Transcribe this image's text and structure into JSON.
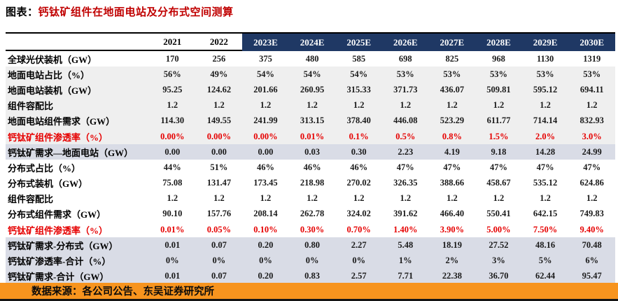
{
  "title": {
    "prefix": "图表：",
    "text": "钙钛矿组件在地面电站及分布式空间测算"
  },
  "colors": {
    "navy": "#1f3864",
    "red": "#e60000",
    "title-red": "#c00000",
    "orange": "#f7941e",
    "grey": "#efefef",
    "band": "#d9dce6"
  },
  "table": {
    "columns": [
      "2021",
      "2022",
      "2023E",
      "2024E",
      "2025E",
      "2026E",
      "2027E",
      "2028E",
      "2029E",
      "2030E"
    ],
    "rows": [
      {
        "label": "全球光伏装机（GW）",
        "bg": "white",
        "red": false,
        "values": [
          "170",
          "256",
          "375",
          "480",
          "585",
          "698",
          "825",
          "968",
          "1130",
          "1319"
        ]
      },
      {
        "label": "地面电站占比（%）",
        "bg": "grey",
        "red": false,
        "values": [
          "56%",
          "49%",
          "54%",
          "54%",
          "54%",
          "53%",
          "53%",
          "53%",
          "53%",
          "53%"
        ]
      },
      {
        "label": "地面电站装机（GW）",
        "bg": "grey",
        "red": false,
        "values": [
          "95.25",
          "124.62",
          "201.66",
          "260.95",
          "315.33",
          "371.73",
          "436.07",
          "509.81",
          "595.12",
          "694.11"
        ]
      },
      {
        "label": "组件容配比",
        "bg": "grey",
        "red": false,
        "values": [
          "1.2",
          "1.2",
          "1.2",
          "1.2",
          "1.2",
          "1.2",
          "1.2",
          "1.2",
          "1.2",
          "1.2"
        ]
      },
      {
        "label": "地面电站组件需求（GW）",
        "bg": "grey",
        "red": false,
        "values": [
          "114.30",
          "149.55",
          "241.99",
          "313.15",
          "378.40",
          "446.08",
          "523.29",
          "611.77",
          "714.14",
          "832.93"
        ]
      },
      {
        "label": "钙钛矿组件渗透率（%）",
        "bg": "grey",
        "red": true,
        "values": [
          "0.00%",
          "0.00%",
          "0.00%",
          "0.01%",
          "0.1%",
          "0.5%",
          "0.8%",
          "1.5%",
          "2.0%",
          "3.0%"
        ]
      },
      {
        "label": "钙钛矿需求—地面电站（GW）",
        "bg": "band",
        "red": false,
        "values": [
          "0.00",
          "0.00",
          "0.00",
          "0.03",
          "0.30",
          "2.23",
          "4.19",
          "9.18",
          "14.28",
          "24.99"
        ]
      },
      {
        "label": "分布式占比（%）",
        "bg": "white",
        "red": false,
        "values": [
          "44%",
          "51%",
          "46%",
          "46%",
          "46%",
          "47%",
          "47%",
          "47%",
          "47%",
          "47%"
        ]
      },
      {
        "label": "分布式装机（GW）",
        "bg": "white",
        "red": false,
        "values": [
          "75.08",
          "131.47",
          "173.45",
          "218.98",
          "270.02",
          "326.35",
          "388.66",
          "458.67",
          "535.12",
          "624.86"
        ]
      },
      {
        "label": "组件容配比",
        "bg": "white",
        "red": false,
        "values": [
          "1.2",
          "1.2",
          "1.2",
          "1.2",
          "1.2",
          "1.2",
          "1.2",
          "1.2",
          "1.2",
          "1.2"
        ]
      },
      {
        "label": "分布式组件需求（GW）",
        "bg": "white",
        "red": false,
        "values": [
          "90.10",
          "157.76",
          "208.14",
          "262.78",
          "324.02",
          "391.62",
          "466.40",
          "550.41",
          "642.15",
          "749.83"
        ]
      },
      {
        "label": "钙钛矿组件渗透率（%）",
        "bg": "white",
        "red": true,
        "values": [
          "0.01%",
          "0.05%",
          "0.10%",
          "0.30%",
          "0.70%",
          "1.40%",
          "3.90%",
          "5.00%",
          "7.50%",
          "9.40%"
        ]
      },
      {
        "label": "钙钛矿需求-分布式（GW）",
        "bg": "band",
        "red": false,
        "values": [
          "0.01",
          "0.07",
          "0.20",
          "0.80",
          "2.27",
          "5.48",
          "18.19",
          "27.52",
          "48.16",
          "70.48"
        ]
      },
      {
        "label": "钙钛矿渗透率-合计（%）",
        "bg": "band",
        "red": false,
        "values": [
          "0%",
          "0%",
          "0%",
          "0%",
          "0%",
          "1%",
          "2%",
          "3%",
          "5%",
          "6%"
        ]
      },
      {
        "label": "钙钛矿需求-合计（GW）",
        "bg": "band",
        "red": false,
        "values": [
          "0.01",
          "0.07",
          "0.20",
          "0.83",
          "2.57",
          "7.71",
          "22.38",
          "36.70",
          "62.44",
          "95.47"
        ]
      }
    ]
  },
  "footer": {
    "source": "数据来源：各公司公告、东吴证券研究所"
  }
}
